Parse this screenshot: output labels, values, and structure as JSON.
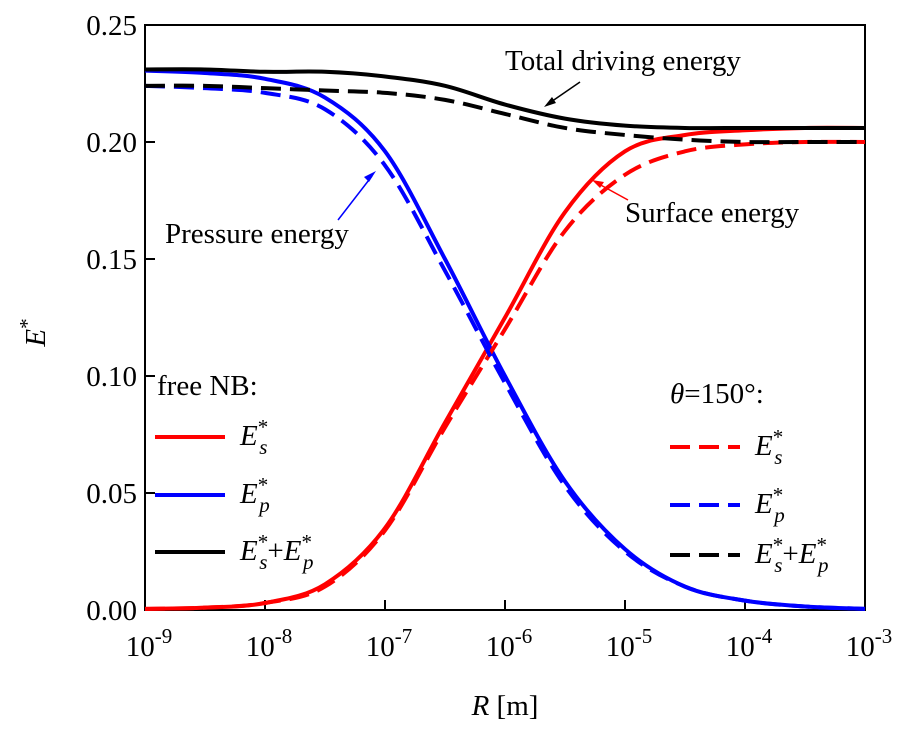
{
  "chart_data": {
    "type": "line",
    "xscale": "log",
    "xlabel": "R [m]",
    "ylabel": "E*",
    "x": [
      1e-09,
      3.16e-09,
      1e-08,
      3.16e-08,
      1e-07,
      3.16e-07,
      1e-06,
      3.16e-06,
      1e-05,
      3.16e-05,
      0.0001,
      0.000316,
      0.001
    ],
    "xlim": [
      1e-09,
      0.001
    ],
    "xticks": [
      {
        "value": 1e-09,
        "label": "10-9"
      },
      {
        "value": 1e-08,
        "label": "10-8"
      },
      {
        "value": 1e-07,
        "label": "10-7"
      },
      {
        "value": 1e-06,
        "label": "10-6"
      },
      {
        "value": 1e-05,
        "label": "10-5"
      },
      {
        "value": 0.0001,
        "label": "10-4"
      },
      {
        "value": 0.001,
        "label": "10-3"
      }
    ],
    "ylim": [
      0,
      0.25
    ],
    "yticks": [
      {
        "value": 0,
        "label": "0.00"
      },
      {
        "value": 0.05,
        "label": "0.05"
      },
      {
        "value": 0.1,
        "label": "0.10"
      },
      {
        "value": 0.15,
        "label": "0.15"
      },
      {
        "value": 0.2,
        "label": "0.20"
      },
      {
        "value": 0.25,
        "label": "0.25"
      }
    ],
    "legend_titles": [
      "free NB:",
      "θ=150°:"
    ],
    "annotations": [
      "Total driving energy",
      "Pressure energy",
      "Surface energy"
    ],
    "series": [
      {
        "name": "E*s",
        "color": "#ff0000",
        "linestyle": "solid",
        "values": [
          0.0005,
          0.001,
          0.003,
          0.011,
          0.035,
          0.08,
          0.125,
          0.17,
          0.196,
          0.203,
          0.205,
          0.206,
          0.206
        ]
      },
      {
        "name": "E*p",
        "color": "#0000ff",
        "linestyle": "solid",
        "values": [
          0.2305,
          0.2295,
          0.227,
          0.219,
          0.196,
          0.15,
          0.1,
          0.055,
          0.026,
          0.01,
          0.004,
          0.0015,
          0.0005
        ]
      },
      {
        "name": "E*s+E*p",
        "color": "#000000",
        "linestyle": "solid",
        "values": [
          0.231,
          0.231,
          0.23,
          0.23,
          0.228,
          0.224,
          0.216,
          0.21,
          0.207,
          0.206,
          0.206,
          0.206,
          0.206
        ]
      },
      {
        "name": "E*s",
        "color": "#ff0000",
        "linestyle": "dashed",
        "values": [
          0.0005,
          0.001,
          0.003,
          0.01,
          0.034,
          0.078,
          0.12,
          0.162,
          0.186,
          0.196,
          0.199,
          0.2,
          0.2
        ]
      },
      {
        "name": "E*p",
        "color": "#0000ff",
        "linestyle": "dashed",
        "values": [
          0.224,
          0.223,
          0.221,
          0.214,
          0.19,
          0.145,
          0.097,
          0.053,
          0.025,
          0.01,
          0.004,
          0.0015,
          0.0005
        ]
      },
      {
        "name": "E*s+E*p",
        "color": "#000000",
        "linestyle": "dashed",
        "values": [
          0.224,
          0.224,
          0.223,
          0.222,
          0.221,
          0.218,
          0.212,
          0.206,
          0.203,
          0.201,
          0.2,
          0.2,
          0.2
        ]
      }
    ]
  }
}
